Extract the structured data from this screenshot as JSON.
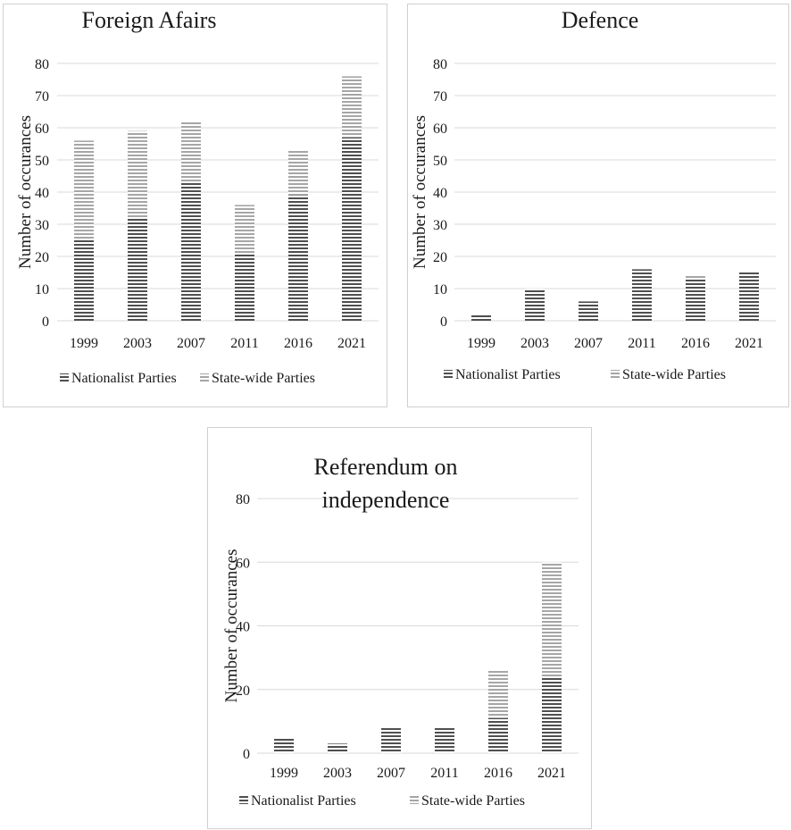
{
  "colors": {
    "nationalist": "#4f4f4f",
    "statewide": "#a6a6a6",
    "grid": "#d9d9d9"
  },
  "chart_data": [
    {
      "type": "bar",
      "stacked": true,
      "title": "Foreign Afairs",
      "xlabel": "",
      "ylabel": "Number of occurances",
      "categories": [
        "1999",
        "2003",
        "2007",
        "2011",
        "2016",
        "2021"
      ],
      "yticks": [
        "0",
        "10",
        "20",
        "30",
        "40",
        "50",
        "60",
        "70",
        "80"
      ],
      "ylim": [
        0,
        80
      ],
      "grid": true,
      "legend": "bottom",
      "series": [
        {
          "name": "Nationalist Parties",
          "values": [
            25,
            32,
            43,
            21,
            39,
            57
          ]
        },
        {
          "name": "State-wide Parties",
          "values": [
            31,
            27,
            19,
            15,
            14,
            19
          ]
        }
      ]
    },
    {
      "type": "bar",
      "stacked": true,
      "title": "Defence",
      "xlabel": "",
      "ylabel": "Number of occurances",
      "categories": [
        "1999",
        "2003",
        "2007",
        "2011",
        "2016",
        "2021"
      ],
      "yticks": [
        "0",
        "10",
        "20",
        "30",
        "40",
        "50",
        "60",
        "70",
        "80"
      ],
      "ylim": [
        0,
        80
      ],
      "grid": true,
      "legend": "bottom",
      "series": [
        {
          "name": "Nationalist Parties",
          "values": [
            2,
            10,
            6,
            16,
            13,
            15
          ]
        },
        {
          "name": "State-wide Parties",
          "values": [
            0,
            0,
            0,
            0,
            1,
            0
          ]
        }
      ]
    },
    {
      "type": "bar",
      "stacked": true,
      "title": "Referendum on independence",
      "xlabel": "",
      "ylabel": "Number of occurances",
      "categories": [
        "1999",
        "2003",
        "2007",
        "2011",
        "2016",
        "2021"
      ],
      "yticks": [
        "0",
        "",
        "20",
        "",
        "40",
        "",
        "60",
        "",
        "80"
      ],
      "ylim": [
        0,
        80
      ],
      "grid": true,
      "legend": "bottom",
      "series": [
        {
          "name": "Nationalist Parties",
          "values": [
            5,
            3,
            8,
            8,
            11,
            24
          ]
        },
        {
          "name": "State-wide Parties",
          "values": [
            0,
            0,
            0,
            0,
            15,
            36
          ]
        }
      ]
    }
  ]
}
